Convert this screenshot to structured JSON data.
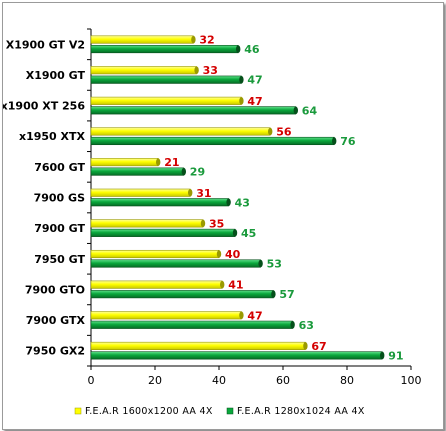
{
  "chart_data": {
    "type": "bar",
    "orientation": "horizontal",
    "categories": [
      "X1900 GT V2",
      "X1900 GT",
      "x1900 XT 256",
      "x1950 XTX",
      "7600 GT",
      "7900 GS",
      "7900 GT",
      "7950 GT",
      "7900 GTO",
      "7900 GTX",
      "7950 GX2"
    ],
    "series": [
      {
        "name": "F.E.A.R 1600x1200 AA 4X",
        "values": [
          32,
          33,
          47,
          56,
          21,
          31,
          35,
          40,
          41,
          47,
          67
        ],
        "color": "#ffff00",
        "label_color": "#d40000"
      },
      {
        "name": "F.E.A.R 1280x1024 AA 4X",
        "values": [
          46,
          47,
          64,
          76,
          29,
          43,
          45,
          53,
          57,
          63,
          91
        ],
        "color": "#0aa83c",
        "label_color": "#1a9a3c"
      }
    ],
    "xlim": [
      0,
      100
    ],
    "x_ticks": [
      "0",
      "20",
      "40",
      "60",
      "80",
      "100"
    ],
    "grid": false,
    "legend_position": "bottom"
  }
}
